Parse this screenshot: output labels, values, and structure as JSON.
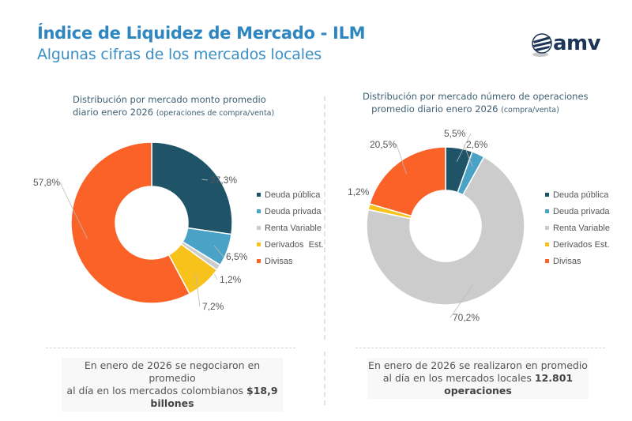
{
  "header": {
    "title": "Índice de Liquidez de Mercado - ILM",
    "subtitle": "Algunas cifras de los mercados locales",
    "logo_text": "amv"
  },
  "legend_labels": [
    "Deuda pública",
    "Deuda privada",
    "Renta Variable",
    "Derivados",
    "Est.",
    "Divisas"
  ],
  "colors": {
    "deuda_publica": "#1f5468",
    "deuda_privada": "#4aa3c6",
    "renta_variable": "#cccccc",
    "derivados": "#f7c21b",
    "divisas": "#fa6228",
    "title": "#2e86c1"
  },
  "chart_data": [
    {
      "type": "pie",
      "title": "Distribución por mercado monto promedio",
      "title_line2": "diario enero 2026",
      "title_note": "(operaciones de compra/venta)",
      "categories": [
        "Deuda pública",
        "Deuda privada",
        "Renta Variable",
        "Derivados Est.",
        "Divisas"
      ],
      "values": [
        27.3,
        6.5,
        1.2,
        7.2,
        57.8
      ],
      "labels": [
        "27,3%",
        "6,5%",
        "1,2%",
        "7,2%",
        "57,8%"
      ],
      "legend": "right",
      "donut": true
    },
    {
      "type": "pie",
      "title": "Distribución por mercado número de operaciones",
      "title_line2": "promedio diario enero 2026",
      "title_note": "(compra/venta)",
      "categories": [
        "Deuda pública",
        "Deuda privada",
        "Renta Variable",
        "Derivados Est.",
        "Divisas"
      ],
      "values": [
        5.5,
        2.6,
        70.2,
        1.2,
        20.5
      ],
      "labels": [
        "5,5%",
        "2,6%",
        "70,2%",
        "1,2%",
        "20,5%"
      ],
      "legend": "right",
      "donut": true
    }
  ],
  "summaries": [
    {
      "line1": "En enero de 2026 se negociaron en promedio",
      "line2": "al día en los mercados colombianos",
      "highlight": "$18,9",
      "highlight2": "billones"
    },
    {
      "line1": "En enero de 2026 se realizaron en promedio",
      "line2": "al día en los mercados locales",
      "highlight": "12.801",
      "highlight2": "operaciones"
    }
  ]
}
